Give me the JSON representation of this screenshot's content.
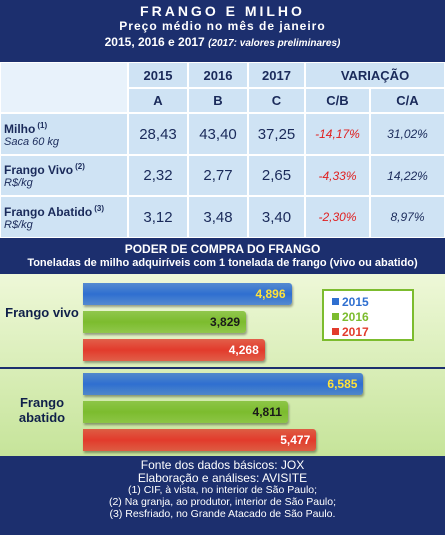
{
  "header": {
    "title": "FRANGO E MILHO",
    "subtitle": "Preço médio no mês de janeiro",
    "years": "2015, 2016 e 2017",
    "note": "(2017: valores preliminares)"
  },
  "table": {
    "header_years": [
      "2015",
      "2016",
      "2017"
    ],
    "header_variation": "VARIAÇÃO",
    "header_letters": [
      "A",
      "B",
      "C",
      "C/B",
      "C/A"
    ],
    "rows": [
      {
        "name": "Milho",
        "ref": "(1)",
        "unit": "Saca 60 kg",
        "cells": [
          "28,43",
          "43,40",
          "37,25",
          "-14,17%",
          "31,02%"
        ]
      },
      {
        "name": "Frango Vivo",
        "ref": "(2)",
        "unit": "R$/kg",
        "cells": [
          "2,32",
          "2,77",
          "2,65",
          "-4,33%",
          "14,22%"
        ]
      },
      {
        "name": "Frango Abatido",
        "ref": "(3)",
        "unit": "R$/kg",
        "cells": [
          "3,12",
          "3,48",
          "3,40",
          "-2,30%",
          "8,97%"
        ]
      }
    ]
  },
  "chart_data": {
    "type": "bar",
    "orientation": "horizontal",
    "title": "PODER DE COMPRA DO FRANGO",
    "subtitle": "Toneladas de milho adquiríveis com 1 tonelada de frango (vivo ou abatido)",
    "categories": [
      "Frango vivo",
      "Frango abatido"
    ],
    "xlim": [
      0,
      8.5
    ],
    "legend": "upper right",
    "series": [
      {
        "name": "2015",
        "color": "#2f6fd0",
        "values": [
          4.896,
          6.585
        ],
        "value_labels": [
          "4,896",
          "6,585"
        ]
      },
      {
        "name": "2016",
        "color": "#7cbc2e",
        "values": [
          3.829,
          4.811
        ],
        "value_labels": [
          "3,829",
          "4,811"
        ]
      },
      {
        "name": "2017",
        "color": "#e23b2c",
        "values": [
          4.268,
          5.477
        ],
        "value_labels": [
          "4,268",
          "5,477"
        ]
      }
    ]
  },
  "footer": {
    "lines": [
      "Fonte dos dados básicos: JOX",
      "Elaboração e análises: AVISITE",
      "(1) CIF, à vista, no interior de São Paulo;",
      "(2) Na granja, ao produtor, interior de São Paulo;",
      "(3) Resfriado, no Grande Atacado de São Paulo."
    ]
  }
}
